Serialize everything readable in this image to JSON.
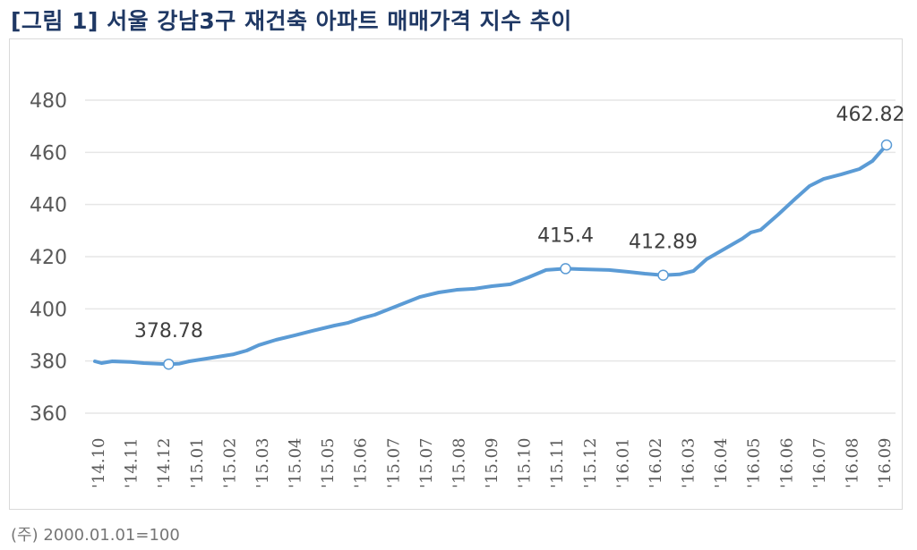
{
  "title": "[그림 1] 서울 강남3구 재건축 아파트 매매가격 지수 추이",
  "note": "(주) 2000.01.01=100",
  "colors": {
    "line": "#5b9bd5",
    "title": "#1f3864",
    "grid": "#e6e6e6",
    "text": "#595959"
  },
  "chart_data": {
    "type": "line",
    "title": "",
    "xlabel": "",
    "ylabel": "",
    "ylim": [
      360,
      480
    ],
    "yticks": [
      360,
      380,
      400,
      420,
      440,
      460,
      480
    ],
    "xtick_labels": [
      "'14.10",
      "'14.11",
      "'14.12",
      "'15.01",
      "'15.02",
      "'15.03",
      "'15.04",
      "'15.05",
      "'15.06",
      "'15.07",
      "'15.07",
      "'15.08",
      "'15.09",
      "'15.10",
      "'15.11",
      "'15.12",
      "'16.01",
      "'16.02",
      "'16.03",
      "'16.04",
      "'16.05",
      "'16.06",
      "'16.07",
      "'16.08",
      "'16.09"
    ],
    "grid": "horizontal",
    "series": [
      {
        "x": [
          "2014-10-01",
          "2014-10-07",
          "2014-10-17",
          "2014-11-03",
          "2014-11-15",
          "2014-12-08",
          "2014-12-18",
          "2014-12-27",
          "2015-01-12",
          "2015-02-06",
          "2015-02-18",
          "2015-03-01",
          "2015-03-17",
          "2015-04-03",
          "2015-04-20",
          "2015-05-10",
          "2015-05-22",
          "2015-06-04",
          "2015-06-16",
          "2015-07-03",
          "2015-07-28",
          "2015-08-14",
          "2015-08-31",
          "2015-09-16",
          "2015-10-02",
          "2015-10-19",
          "2015-11-05",
          "2015-11-21",
          "2015-12-09",
          "2015-12-23",
          "2016-01-18",
          "2016-02-04",
          "2016-02-20",
          "2016-03-08",
          "2016-03-23",
          "2016-04-05",
          "2016-04-17",
          "2016-05-04",
          "2016-05-20",
          "2016-05-28",
          "2016-06-06",
          "2016-06-22",
          "2016-07-08",
          "2016-07-21",
          "2016-08-03",
          "2016-08-19",
          "2016-09-05",
          "2016-09-17",
          "2016-09-30"
        ],
        "values": [
          379.9,
          379.2,
          379.9,
          379.6,
          379.2,
          378.78,
          379.0,
          379.9,
          380.9,
          382.6,
          384.0,
          386.1,
          388.1,
          389.8,
          391.6,
          393.6,
          394.6,
          396.4,
          397.7,
          400.5,
          404.6,
          406.3,
          407.3,
          407.7,
          408.7,
          409.4,
          412.1,
          414.9,
          415.4,
          415.2,
          414.9,
          414.2,
          413.5,
          412.89,
          413.2,
          414.5,
          419.0,
          423.1,
          426.9,
          429.3,
          430.3,
          436.1,
          442.3,
          447.1,
          449.8,
          451.5,
          453.6,
          456.7,
          462.82
        ]
      }
    ],
    "annotations": [
      {
        "x": "2014-12-08",
        "value": 378.78,
        "label": "378.78"
      },
      {
        "x": "2015-12-09",
        "value": 415.4,
        "label": "415.4"
      },
      {
        "x": "2016-03-08",
        "value": 412.89,
        "label": "412.89"
      },
      {
        "x": "2016-09-30",
        "value": 462.82,
        "label": "462.82"
      }
    ]
  }
}
